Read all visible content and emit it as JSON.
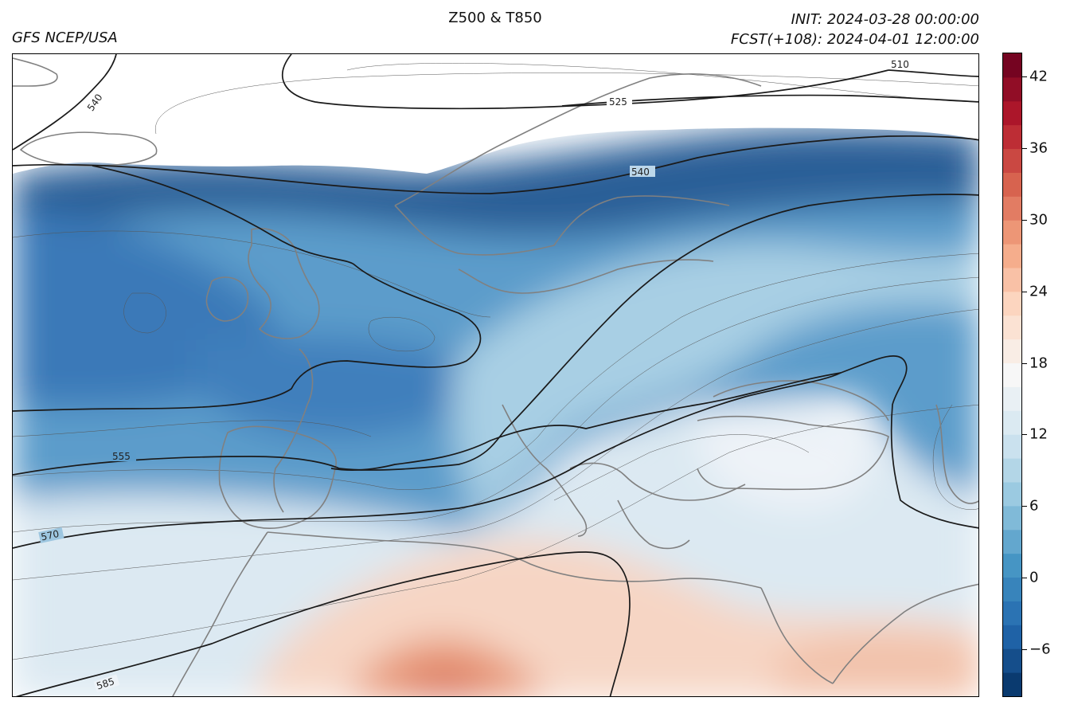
{
  "header": {
    "title": "Z500 & T850",
    "source": "GFS NCEP/USA",
    "init": "INIT: 2024-03-28 00:00:00",
    "forecast": "FCST(+108): 2024-04-01 12:00:00"
  },
  "map": {
    "field_filled": "T850",
    "field_contour": "Z500",
    "contour_labels": [
      "510",
      "525",
      "540",
      "540",
      "555",
      "570",
      "585"
    ],
    "coastline_color": "#808080",
    "contour_color": "#1a1a1a"
  },
  "colorbar": {
    "colormap": "RdBu_r",
    "min": -10,
    "max": 44,
    "step": 2,
    "tick_labels": [
      "−6",
      "0",
      "6",
      "12",
      "18",
      "24",
      "30",
      "36",
      "42"
    ],
    "tick_values": [
      -6,
      0,
      6,
      12,
      18,
      24,
      30,
      36,
      42
    ]
  }
}
